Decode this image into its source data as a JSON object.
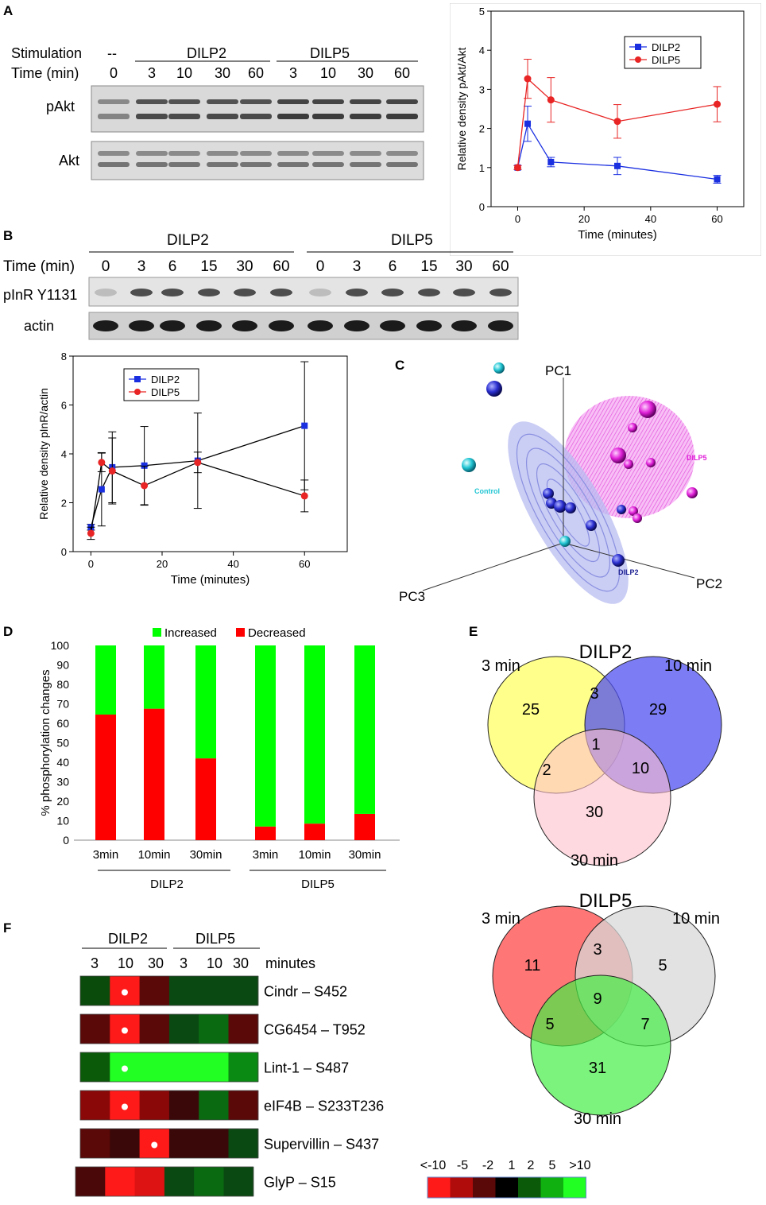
{
  "panels": {
    "A": {
      "letter": "A",
      "western": {
        "stim_label": "Stimulation",
        "time_label": "Time (min)",
        "control_mark": "--",
        "group_dilp2": "DILP2",
        "group_dilp5": "DILP5",
        "times": [
          "0",
          "3",
          "10",
          "30",
          "60",
          "3",
          "10",
          "30",
          "60"
        ],
        "row1": "pAkt",
        "row2": "Akt"
      },
      "chart_data": {
        "type": "line",
        "ylabel": "Relative density pAkt/Akt",
        "xlabel": "Time (minutes)",
        "xlim": [
          -8,
          68
        ],
        "ylim": [
          0,
          5
        ],
        "xticks": [
          0,
          20,
          40,
          60
        ],
        "yticks": [
          0,
          1,
          2,
          3,
          4,
          5
        ],
        "legend_position": "top-right",
        "series": [
          {
            "name": "DILP2",
            "color": "#1a2fe0",
            "marker": "square",
            "x": [
              0,
              3,
              10,
              30,
              60
            ],
            "y": [
              1.0,
              2.12,
              1.14,
              1.04,
              0.7
            ],
            "err": [
              0.05,
              0.45,
              0.12,
              0.22,
              0.1
            ]
          },
          {
            "name": "DILP5",
            "color": "#e82424",
            "marker": "circle",
            "x": [
              0,
              3,
              10,
              30,
              60
            ],
            "y": [
              1.0,
              3.27,
              2.73,
              2.18,
              2.62
            ],
            "err": [
              0.05,
              0.5,
              0.57,
              0.43,
              0.45
            ]
          }
        ]
      }
    },
    "B": {
      "letter": "B",
      "western": {
        "group_dilp2": "DILP2",
        "group_dilp5": "DILP5",
        "time_label": "Time (min)",
        "times": [
          "0",
          "3",
          "6",
          "15",
          "30",
          "60",
          "0",
          "3",
          "6",
          "15",
          "30",
          "60"
        ],
        "row1": "pInR Y1131",
        "row2": "actin"
      },
      "chart_data": {
        "type": "line",
        "ylabel": "Relative density pInR/actin",
        "xlabel": "Time (minutes)",
        "xlim": [
          -5,
          72
        ],
        "ylim": [
          0,
          8
        ],
        "xticks": [
          0,
          20,
          40,
          60
        ],
        "yticks": [
          0,
          2,
          4,
          6,
          8
        ],
        "legend_position": "top-left",
        "series": [
          {
            "name": "DILP2",
            "color": "#1a2fe0",
            "marker": "square",
            "x": [
              0,
              3,
              6,
              15,
              30,
              60
            ],
            "y": [
              1.0,
              2.55,
              3.45,
              3.52,
              3.72,
              5.15
            ],
            "err": [
              0.12,
              1.5,
              1.45,
              1.6,
              1.95,
              2.62
            ]
          },
          {
            "name": "DILP5",
            "color": "#e82424",
            "marker": "circle",
            "x": [
              0,
              3,
              6,
              15,
              30,
              60
            ],
            "y": [
              0.75,
              3.65,
              3.3,
              2.7,
              3.65,
              2.28
            ],
            "err": [
              0.25,
              0.38,
              1.35,
              0.8,
              0.42,
              0.65
            ]
          }
        ]
      }
    },
    "C": {
      "letter": "C",
      "axis_pc1": "PC1",
      "axis_pc2": "PC2",
      "axis_pc3": "PC3",
      "label_control": "Control",
      "label_dilp2": "DILP2",
      "label_dilp5": "DILP5",
      "color_control": "#22c6d4",
      "color_dilp2": "#2b2fd0",
      "color_dilp5": "#e020d8"
    },
    "D": {
      "letter": "D",
      "chart_data": {
        "type": "bar",
        "stacked": true,
        "ylabel": "% phosphorylation changes",
        "ylim": [
          0,
          100
        ],
        "yticks": [
          0,
          10,
          20,
          30,
          40,
          50,
          60,
          70,
          80,
          90,
          100
        ],
        "categories": [
          "3min",
          "10min",
          "30min",
          "3min",
          "10min",
          "30min"
        ],
        "groups": [
          {
            "name": "DILP2",
            "span": [
              0,
              2
            ]
          },
          {
            "name": "DILP5",
            "span": [
              3,
              5
            ]
          }
        ],
        "legend_position": "top",
        "series": [
          {
            "name": "Decreased",
            "color": "#ff0000",
            "values": [
              64.5,
              67.5,
              42,
              7,
              8.5,
              13.5
            ]
          },
          {
            "name": "Increased",
            "color": "#00ff00",
            "values": [
              35.5,
              32.5,
              58,
              93,
              91.5,
              86.5
            ]
          }
        ]
      }
    },
    "E": {
      "letter": "E",
      "venn_dilp2": {
        "title": "DILP2",
        "label_3": "3 min",
        "label_10": "10 min",
        "label_30": "30 min",
        "only_3": "25",
        "only_10": "29",
        "only_30": "30",
        "i_3_10": "3",
        "i_3_30": "2",
        "i_10_30": "10",
        "i_all": "1"
      },
      "venn_dilp5": {
        "title": "DILP5",
        "label_3": "3 min",
        "label_10": "10 min",
        "label_30": "30 min",
        "only_3": "11",
        "only_10": "5",
        "only_30": "31",
        "i_3_10": "3",
        "i_3_30": "5",
        "i_10_30": "7",
        "i_all": "9"
      }
    },
    "F": {
      "letter": "F",
      "group_dilp2": "DILP2",
      "group_dilp5": "DILP5",
      "times": [
        "3",
        "10",
        "30",
        "3",
        "10",
        "30"
      ],
      "minutes_label": "minutes",
      "rows": [
        {
          "gene": "Cindr",
          "site": "– S452",
          "colors": [
            "#0a4a0a",
            "#ff1a1a",
            "#5a0808",
            "#0a4a12",
            "#0a4a12",
            "#0a4a12"
          ],
          "dot": 1
        },
        {
          "gene": "CG6454",
          "site": "– T952",
          "colors": [
            "#5a0808",
            "#ff1a1a",
            "#5a0808",
            "#0a4a12",
            "#0a6a12",
            "#5a0808"
          ],
          "dot": 1
        },
        {
          "gene": "Lint-1",
          "site": "– S487",
          "colors": [
            "#0a5a0a",
            "#22ff22",
            "#22ff22",
            "#22ff22",
            "#22ff22",
            "#0a8a12"
          ],
          "dot": 1
        },
        {
          "gene": "eIF4B",
          "site": "– S233T236",
          "colors": [
            "#8a0808",
            "#ff1a1a",
            "#8a0808",
            "#3a0808",
            "#0a6a12",
            "#5a0808"
          ],
          "dot": 1
        },
        {
          "gene": "Supervillin",
          "site": "– S437",
          "colors": [
            "#5a0808",
            "#3a0808",
            "#ff1a1a",
            "#3a0808",
            "#3a0808",
            "#0a4a12"
          ],
          "dot": 2
        },
        {
          "gene": "GlyP",
          "site": "– S15",
          "colors": [
            "#4a0808",
            "#ff1a1a",
            "#dd1212",
            "#0a4a12",
            "#0a6a12",
            "#0a4a12"
          ],
          "dot": -1
        }
      ],
      "scale": {
        "labels": [
          "<-10",
          "-5",
          "-2",
          "1",
          "2",
          "5",
          ">10"
        ],
        "colors": [
          "#ff1a1a",
          "#b00c0c",
          "#5a0808",
          "#000000",
          "#0a5a0a",
          "#10b010",
          "#22ff22"
        ]
      }
    }
  }
}
